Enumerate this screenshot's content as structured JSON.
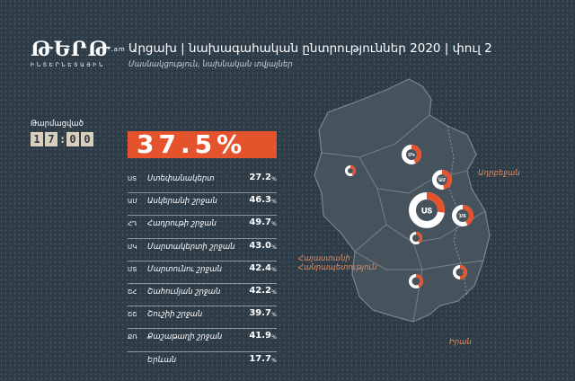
{
  "logo": {
    "main": "ԹԵՐԹ",
    "suffix": ".am",
    "sub": "ԻՆՏԵՐՆԵՏԱՅԻՆ"
  },
  "header": {
    "title": "Արցախ | նախագահական ընտրություններ 2020 | փուլ 2",
    "subtitle": "Մասնակցություն, նախնական տվյալներ"
  },
  "updated": {
    "label": "Թարմացված",
    "time": [
      "1",
      "7",
      ":",
      "0",
      "0"
    ]
  },
  "colors": {
    "accent": "#e4532c",
    "background": "#2e3c48",
    "map_fill": "#46525c",
    "map_border": "#7a8590",
    "donut_rest": "#ffffff"
  },
  "chart_data": {
    "type": "table",
    "title": "Մասնակցություն, նախնական տվյալներ",
    "total": {
      "label": "37.5%",
      "value": 37.5
    },
    "unit": "%",
    "rows": [
      {
        "code": "ՍՏ",
        "name": "Ստեփանակերտ",
        "value": 27.2
      },
      {
        "code": "ԱՄ",
        "name": "Ասկերանի շրջան",
        "value": 46.3
      },
      {
        "code": "ՀԴ",
        "name": "Հադրութի շրջան",
        "value": 49.7
      },
      {
        "code": "ՄԿ",
        "name": "Մարտակերտի շրջան",
        "value": 43.0
      },
      {
        "code": "ՄՏ",
        "name": "Մարտունու շրջան",
        "value": 42.4
      },
      {
        "code": "ՇՀ",
        "name": "Շահումյան շրջան",
        "value": 42.2
      },
      {
        "code": "ՇՇ",
        "name": "Շուշիի շրջան",
        "value": 39.7
      },
      {
        "code": "ՔՌ",
        "name": "Քաշաթաղի շրջան",
        "value": 41.9
      },
      {
        "code": "",
        "name": "Երևան",
        "value": 17.7
      }
    ],
    "row_values": [
      "27.2",
      "46.3",
      "49.7",
      "43.0",
      "42.4",
      "42.2",
      "39.7",
      "41.9",
      "17.7"
    ],
    "map_donuts": [
      {
        "code": "ՄԿ",
        "value": 43.0
      },
      {
        "code": "ՇՀ",
        "value": 42.2
      },
      {
        "code": "ԱՄ",
        "value": 46.3
      },
      {
        "code": "ՍՏ",
        "value": 27.2
      },
      {
        "code": "ՄՏ",
        "value": 42.4
      },
      {
        "code": "ՇՇ",
        "value": 39.7
      },
      {
        "code": "ՔՌ",
        "value": 41.9
      },
      {
        "code": "ՀԴ",
        "value": 49.7
      }
    ]
  },
  "map_labels": {
    "azerbaijan": "Ադրբեջան",
    "armenia_line1": "Հայաստանի",
    "armenia_line2": "Հանրապետություն",
    "iran": "Իրան"
  }
}
